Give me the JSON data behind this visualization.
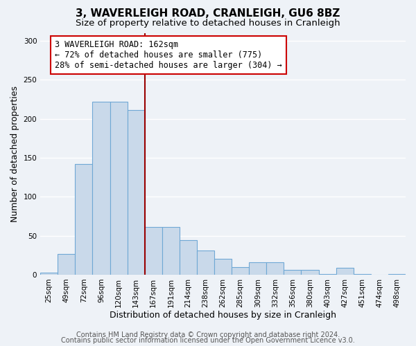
{
  "title": "3, WAVERLEIGH ROAD, CRANLEIGH, GU6 8BZ",
  "subtitle": "Size of property relative to detached houses in Cranleigh",
  "xlabel": "Distribution of detached houses by size in Cranleigh",
  "ylabel": "Number of detached properties",
  "bar_values": [
    3,
    27,
    142,
    222,
    222,
    211,
    61,
    61,
    44,
    31,
    20,
    10,
    16,
    16,
    6,
    6,
    1,
    9,
    1,
    0,
    1
  ],
  "x_tick_labels": [
    "25sqm",
    "49sqm",
    "72sqm",
    "96sqm",
    "120sqm",
    "143sqm",
    "167sqm",
    "191sqm",
    "214sqm",
    "238sqm",
    "262sqm",
    "285sqm",
    "309sqm",
    "332sqm",
    "356sqm",
    "380sqm",
    "403sqm",
    "427sqm",
    "451sqm",
    "474sqm",
    "498sqm"
  ],
  "bar_color": "#c9d9ea",
  "bar_edge_color": "#6fa8d5",
  "vline_color": "#990000",
  "vline_pos": 5.5,
  "annotation_text_line1": "3 WAVERLEIGH ROAD: 162sqm",
  "annotation_text_line2": "← 72% of detached houses are smaller (775)",
  "annotation_text_line3": "28% of semi-detached houses are larger (304) →",
  "ylim": [
    0,
    310
  ],
  "yticks": [
    0,
    50,
    100,
    150,
    200,
    250,
    300
  ],
  "background_color": "#eef2f7",
  "plot_background": "#eef2f7",
  "grid_color": "#ffffff",
  "title_fontsize": 11,
  "subtitle_fontsize": 9.5,
  "axis_label_fontsize": 9,
  "tick_fontsize": 7.5,
  "annotation_fontsize": 8.5,
  "footer_fontsize": 7,
  "footer1": "Contains HM Land Registry data © Crown copyright and database right 2024.",
  "footer2": "Contains public sector information licensed under the Open Government Licence v3.0."
}
